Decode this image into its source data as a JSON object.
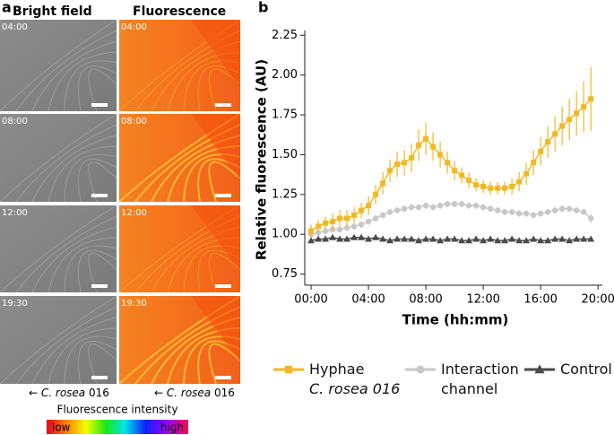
{
  "panel_a": {
    "label": "a",
    "columns": [
      "Bright field",
      "Fluorescence"
    ],
    "timestamps": [
      "04:00",
      "08:00",
      "12:00",
      "19:30"
    ],
    "caption": {
      "arrow": "←",
      "species": "C. rosea",
      "strain": "016"
    },
    "colorbar": {
      "title": "Fluorescence intensity",
      "low": "low",
      "high": "high"
    }
  },
  "panel_b": {
    "label": "b"
  },
  "chart_data": {
    "type": "line",
    "x_label": "Time (hh:mm)",
    "y_label": "Relative fluorescence (AU)",
    "x": [
      0,
      0.5,
      1,
      1.5,
      2,
      2.5,
      3,
      3.5,
      4,
      4.5,
      5,
      5.5,
      6,
      6.5,
      7,
      7.5,
      8,
      8.5,
      9,
      9.5,
      10,
      10.5,
      11,
      11.5,
      12,
      12.5,
      13,
      13.5,
      14,
      14.5,
      15,
      15.5,
      16,
      16.5,
      17,
      17.5,
      18,
      18.5,
      19,
      19.5
    ],
    "xlim": [
      -0.44,
      20.3
    ],
    "xticks": [
      {
        "value": 0,
        "label": "00:00"
      },
      {
        "value": 4,
        "label": "04:00"
      },
      {
        "value": 8,
        "label": "08:00"
      },
      {
        "value": 12,
        "label": "12:00"
      },
      {
        "value": 16,
        "label": "16:00"
      },
      {
        "value": 20,
        "label": "20:00"
      }
    ],
    "ylim": [
      0.68,
      2.28
    ],
    "yticks": [
      {
        "value": 0.75,
        "label": "0.75"
      },
      {
        "value": 1,
        "label": "1.00"
      },
      {
        "value": 1.25,
        "label": "1.25"
      },
      {
        "value": 1.5,
        "label": "1.50"
      },
      {
        "value": 1.75,
        "label": "1.75"
      },
      {
        "value": 2,
        "label": "2.00"
      },
      {
        "value": 2.25,
        "label": "2.25"
      }
    ],
    "series": [
      {
        "name": "Hyphae",
        "name_detail": "C. rosea 016",
        "color": "#f2b824",
        "marker": "square",
        "values": [
          1.02,
          1.05,
          1.07,
          1.08,
          1.1,
          1.1,
          1.12,
          1.15,
          1.18,
          1.25,
          1.32,
          1.4,
          1.44,
          1.45,
          1.48,
          1.56,
          1.6,
          1.55,
          1.5,
          1.45,
          1.4,
          1.37,
          1.34,
          1.31,
          1.3,
          1.29,
          1.29,
          1.29,
          1.3,
          1.33,
          1.38,
          1.45,
          1.52,
          1.58,
          1.63,
          1.68,
          1.72,
          1.76,
          1.8,
          1.85
        ],
        "errors": [
          0.04,
          0.04,
          0.04,
          0.05,
          0.05,
          0.05,
          0.05,
          0.05,
          0.06,
          0.06,
          0.07,
          0.07,
          0.08,
          0.08,
          0.09,
          0.1,
          0.1,
          0.09,
          0.08,
          0.07,
          0.06,
          0.05,
          0.05,
          0.04,
          0.04,
          0.04,
          0.04,
          0.04,
          0.05,
          0.06,
          0.07,
          0.08,
          0.09,
          0.1,
          0.11,
          0.12,
          0.13,
          0.14,
          0.16,
          0.2
        ]
      },
      {
        "name": "Interaction channel",
        "color": "#c8c8c8",
        "marker": "circle",
        "values": [
          1.0,
          1.01,
          1.02,
          1.03,
          1.03,
          1.04,
          1.05,
          1.06,
          1.08,
          1.1,
          1.12,
          1.14,
          1.15,
          1.16,
          1.17,
          1.17,
          1.18,
          1.17,
          1.18,
          1.19,
          1.19,
          1.19,
          1.18,
          1.18,
          1.17,
          1.16,
          1.15,
          1.14,
          1.14,
          1.13,
          1.13,
          1.12,
          1.13,
          1.14,
          1.15,
          1.16,
          1.16,
          1.15,
          1.14,
          1.1
        ],
        "errors": [
          0.02,
          0.02,
          0.02,
          0.02,
          0.02,
          0.02,
          0.02,
          0.02,
          0.02,
          0.02,
          0.02,
          0.02,
          0.02,
          0.02,
          0.02,
          0.02,
          0.02,
          0.02,
          0.02,
          0.02,
          0.02,
          0.02,
          0.02,
          0.02,
          0.02,
          0.02,
          0.02,
          0.02,
          0.02,
          0.02,
          0.02,
          0.02,
          0.02,
          0.02,
          0.02,
          0.02,
          0.02,
          0.02,
          0.02,
          0.03
        ]
      },
      {
        "name": "Control",
        "color": "#4a4a4a",
        "marker": "triangle",
        "values": [
          0.96,
          0.97,
          0.97,
          0.98,
          0.97,
          0.97,
          0.98,
          0.98,
          0.97,
          0.98,
          0.97,
          0.96,
          0.97,
          0.97,
          0.97,
          0.96,
          0.97,
          0.97,
          0.96,
          0.97,
          0.97,
          0.96,
          0.96,
          0.97,
          0.96,
          0.97,
          0.96,
          0.96,
          0.97,
          0.96,
          0.96,
          0.97,
          0.96,
          0.96,
          0.97,
          0.97,
          0.96,
          0.97,
          0.97,
          0.97
        ],
        "errors": [
          0.015,
          0.015,
          0.015,
          0.015,
          0.015,
          0.015,
          0.015,
          0.015,
          0.015,
          0.015,
          0.015,
          0.015,
          0.015,
          0.015,
          0.015,
          0.015,
          0.015,
          0.015,
          0.015,
          0.015,
          0.015,
          0.015,
          0.015,
          0.015,
          0.015,
          0.015,
          0.015,
          0.015,
          0.015,
          0.015,
          0.015,
          0.015,
          0.015,
          0.015,
          0.015,
          0.015,
          0.015,
          0.015,
          0.015,
          0.015
        ]
      }
    ]
  }
}
